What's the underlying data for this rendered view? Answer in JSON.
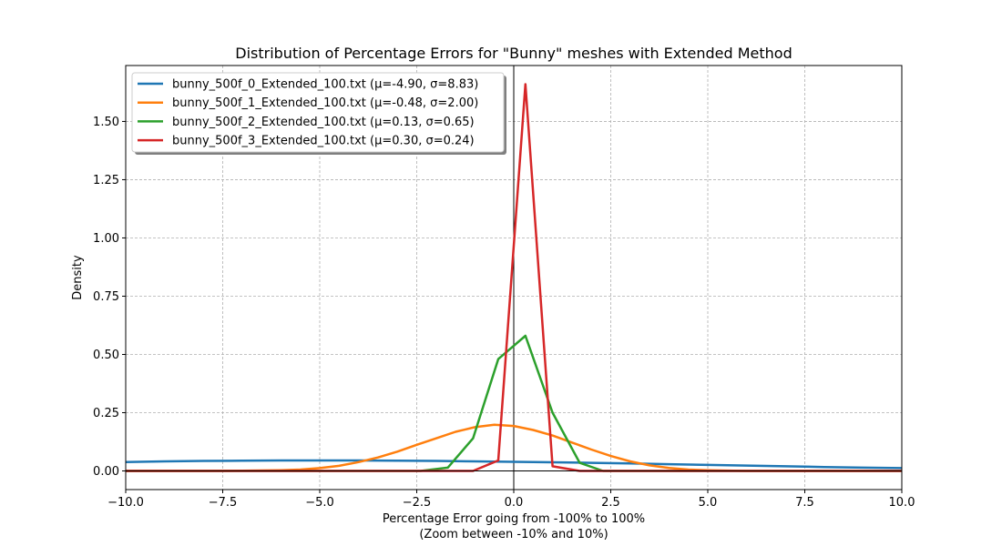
{
  "chart_data": {
    "type": "line",
    "title": "Distribution of Percentage Errors for \"Bunny\" meshes with Extended Method",
    "xlabel": "Percentage Error going from -100% to 100%",
    "xlabel2": "(Zoom between -10% and 10%)",
    "ylabel": "Density",
    "xlim": [
      -10,
      10
    ],
    "ylim": [
      -0.08,
      1.74
    ],
    "xticks": [
      -10,
      -7.5,
      -5,
      -2.5,
      0,
      2.5,
      5,
      7.5,
      10
    ],
    "xtick_labels": [
      "−10.0",
      "−7.5",
      "−5.0",
      "−2.5",
      "0.0",
      "2.5",
      "5.0",
      "7.5",
      "10.0"
    ],
    "yticks": [
      0,
      0.25,
      0.5,
      0.75,
      1.0,
      1.25,
      1.5
    ],
    "ytick_labels": [
      "0.00",
      "0.25",
      "0.50",
      "0.75",
      "1.00",
      "1.25",
      "1.50"
    ],
    "grid": true,
    "legend_position": "top-left",
    "series": [
      {
        "name": "bunny_500f_0_Extended_100.txt (μ=-4.90, σ=8.83)",
        "color": "#1f77b4",
        "x": [
          -10,
          -9,
          -8,
          -7,
          -6,
          -5,
          -4,
          -3,
          -2,
          -1,
          0,
          1,
          2,
          3,
          4,
          5,
          6,
          7,
          8,
          9,
          10
        ],
        "y": [
          0.038,
          0.041,
          0.043,
          0.044,
          0.045,
          0.045,
          0.045,
          0.044,
          0.043,
          0.041,
          0.039,
          0.037,
          0.035,
          0.032,
          0.029,
          0.026,
          0.023,
          0.02,
          0.017,
          0.014,
          0.012
        ]
      },
      {
        "name": "bunny_500f_1_Extended_100.txt (μ=-0.48, σ=2.00)",
        "color": "#ff7f0e",
        "x": [
          -10,
          -8,
          -7,
          -6,
          -5.5,
          -5,
          -4.5,
          -4,
          -3.5,
          -3,
          -2.5,
          -2,
          -1.5,
          -1,
          -0.5,
          0,
          0.5,
          1,
          1.5,
          2,
          2.5,
          3,
          3.5,
          4,
          4.5,
          5,
          6,
          7,
          10
        ],
        "y": [
          0.0,
          0.0,
          0.001,
          0.003,
          0.006,
          0.012,
          0.022,
          0.038,
          0.058,
          0.083,
          0.112,
          0.14,
          0.168,
          0.188,
          0.198,
          0.193,
          0.176,
          0.152,
          0.122,
          0.092,
          0.064,
          0.041,
          0.024,
          0.013,
          0.006,
          0.003,
          0.0,
          0.0,
          0.0
        ]
      },
      {
        "name": "bunny_500f_2_Extended_100.txt (μ=0.13, σ=0.65)",
        "color": "#2ca02c",
        "x": [
          -10,
          -2.4,
          -1.7,
          -1.05,
          -0.4,
          0.3,
          1.0,
          1.7,
          2.3,
          10
        ],
        "y": [
          0.0,
          0.0,
          0.014,
          0.14,
          0.48,
          0.58,
          0.25,
          0.035,
          0.0,
          0.0
        ]
      },
      {
        "name": "bunny_500f_3_Extended_100.txt (μ=0.30, σ=0.24)",
        "color": "#d62728",
        "x": [
          -10,
          -1.05,
          -0.4,
          0.3,
          1.0,
          1.7,
          10
        ],
        "y": [
          0.0,
          0.0,
          0.045,
          1.66,
          0.02,
          0.0,
          0.0
        ]
      }
    ]
  }
}
